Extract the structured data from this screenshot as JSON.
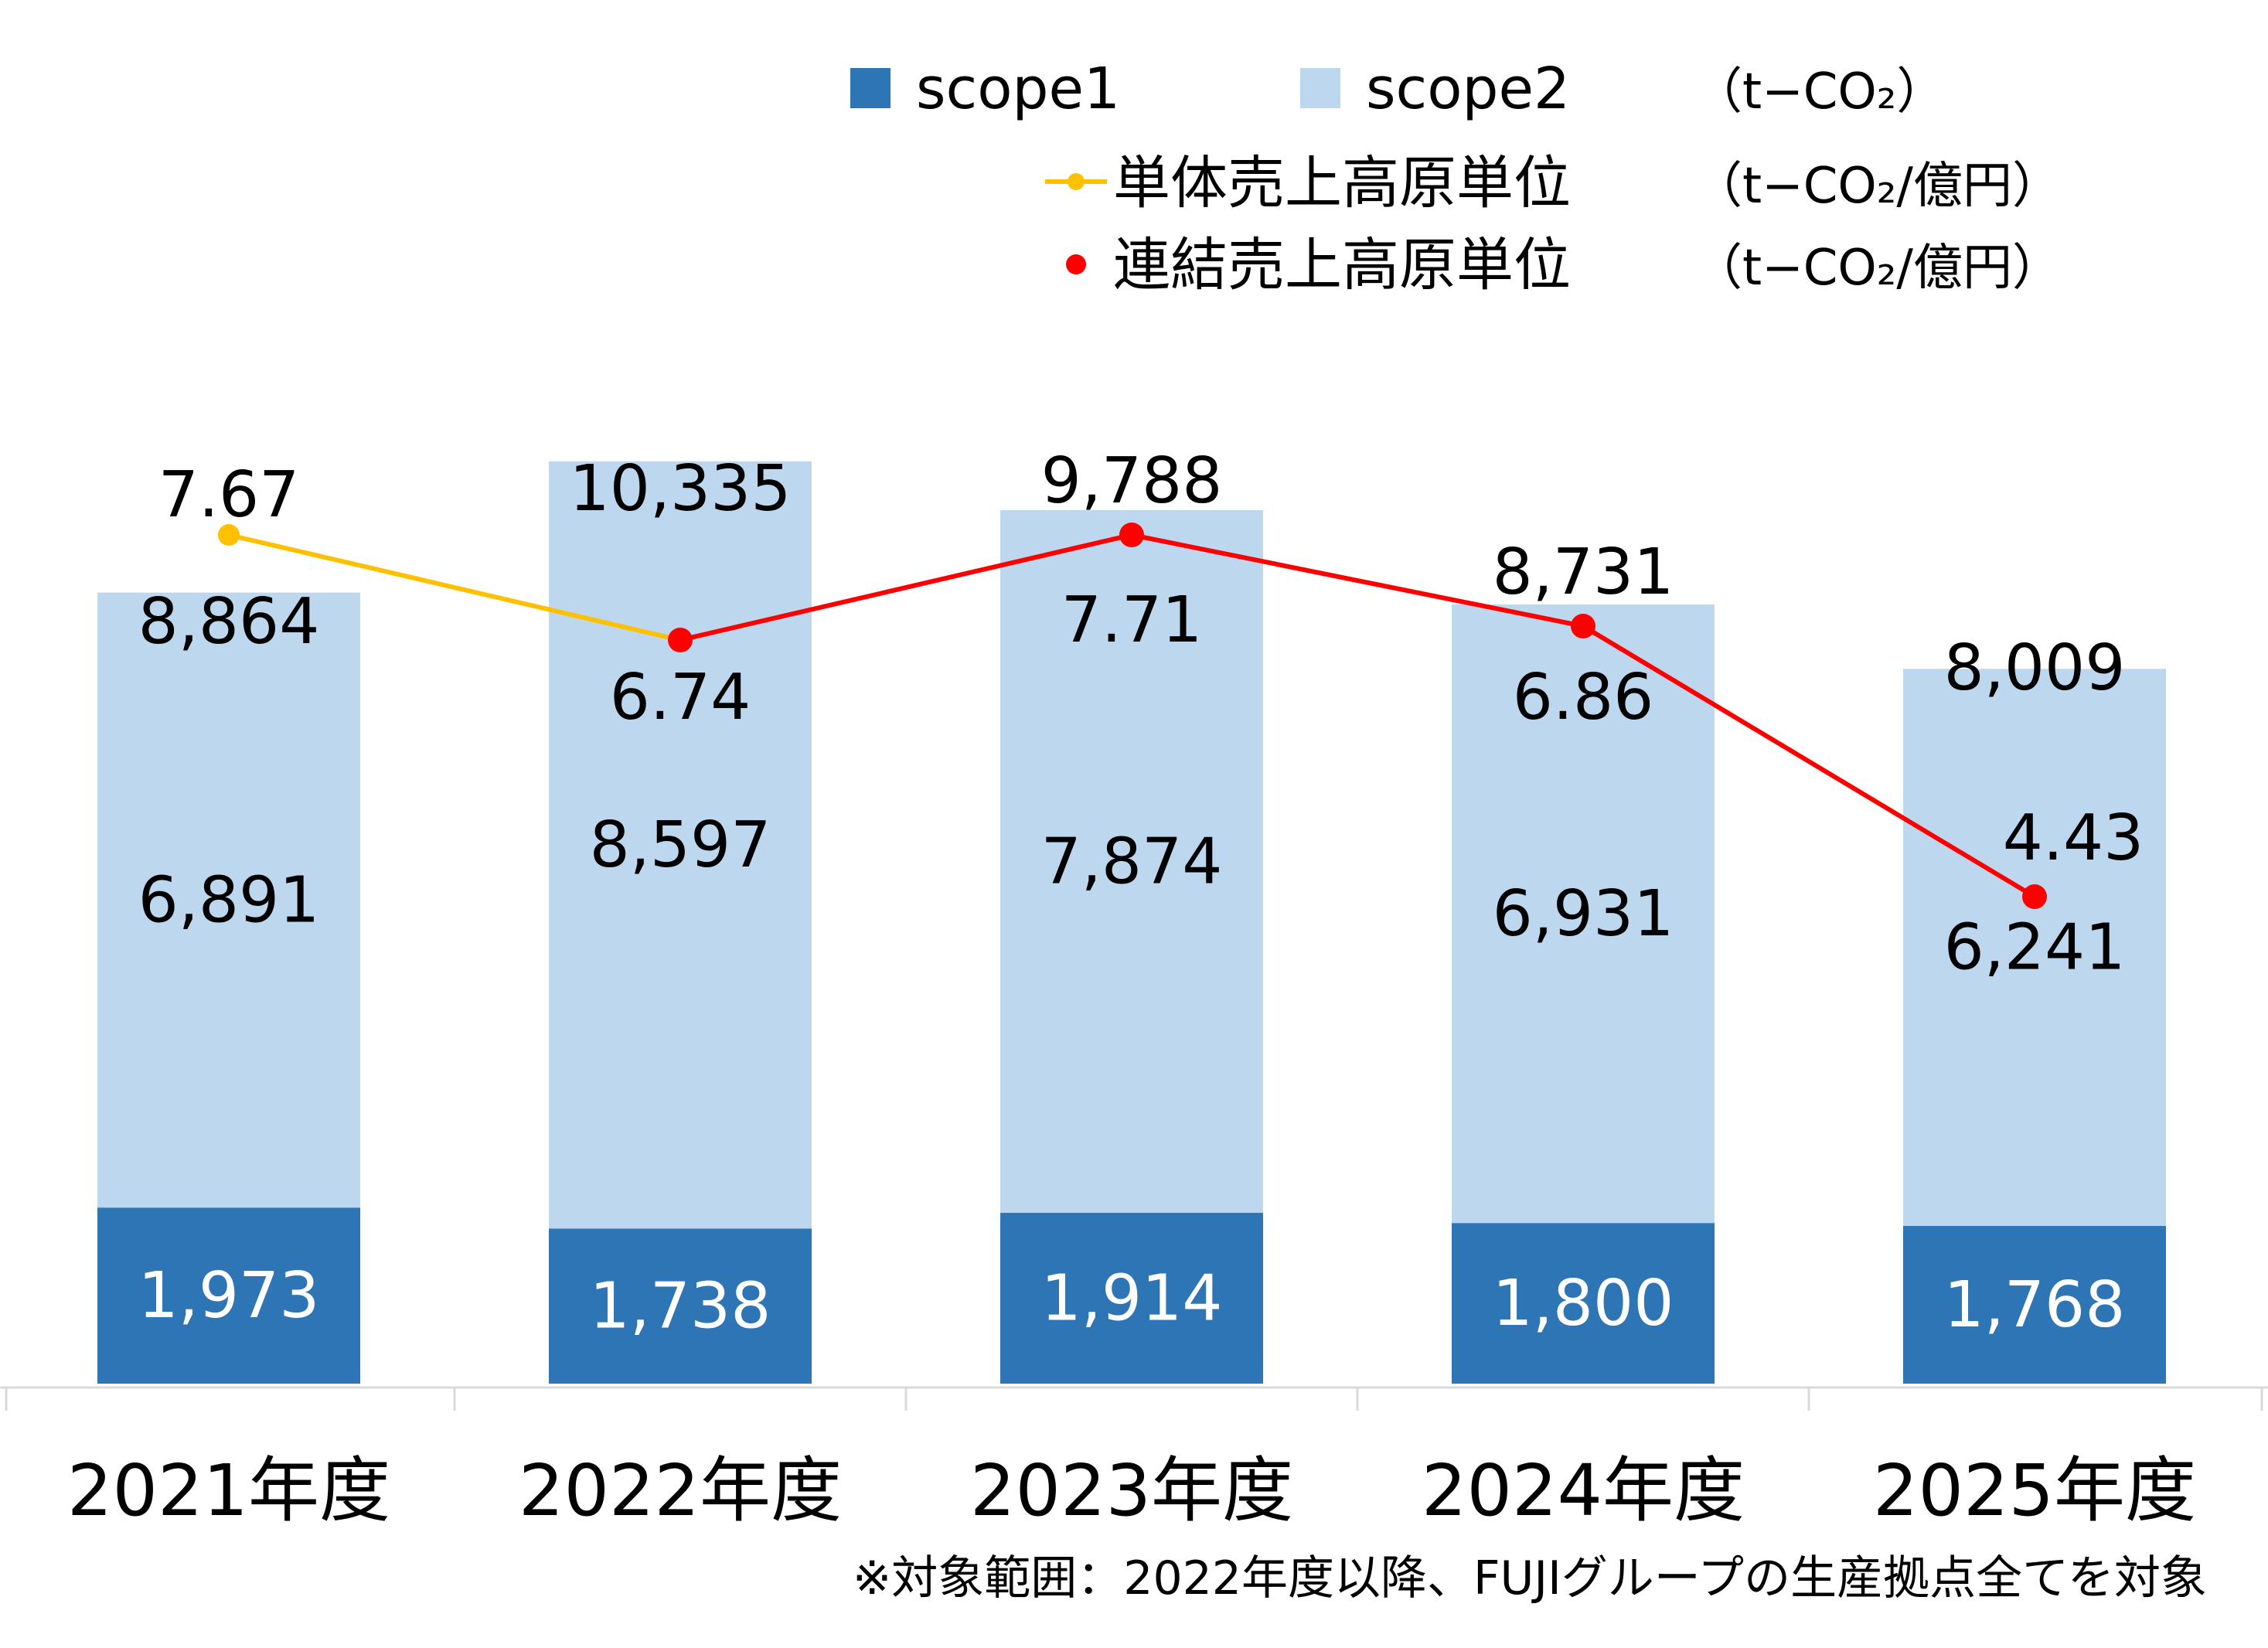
{
  "chart_data": {
    "type": "bar",
    "stacked": true,
    "categories": [
      "2021年度",
      "2022年度",
      "2023年度",
      "2024年度",
      "2025年度"
    ],
    "series": [
      {
        "name": "scope1",
        "values": [
          1973,
          1738,
          1914,
          1800,
          1768
        ],
        "color": "#2E75B6",
        "value_labels": [
          "1,973",
          "1,738",
          "1,914",
          "1,800",
          "1,768"
        ]
      },
      {
        "name": "scope2",
        "values": [
          6891,
          8597,
          7874,
          6931,
          6241
        ],
        "color": "#BDD7EE",
        "value_labels": [
          "6,891",
          "8,597",
          "7,874",
          "6,931",
          "6,241"
        ]
      }
    ],
    "totals": [
      8864,
      10335,
      9788,
      8731,
      8009
    ],
    "total_labels": [
      "8,864",
      "10,335",
      "9,788",
      "8,731",
      "8,009"
    ],
    "intensity_series": [
      {
        "name": "単体売上高原単位",
        "values": [
          7.67,
          6.74,
          null,
          null,
          null
        ],
        "labels": [
          "7.67",
          "",
          "",
          "",
          ""
        ],
        "color": "#FFC000"
      },
      {
        "name": "連結売上高原単位",
        "values": [
          null,
          6.74,
          7.71,
          6.86,
          4.43
        ],
        "labels": [
          "",
          "6.74",
          "7.71",
          "6.86",
          "4.43"
        ],
        "color": "#FF0000"
      }
    ],
    "units": {
      "bars": "（t−CO₂）",
      "single_intensity": "（t−CO₂/億円）",
      "consolidated_intensity": "（t−CO₂/億円）"
    },
    "ylim_bars": [
      0,
      11000
    ],
    "grid": false,
    "legend_position": "top-right",
    "footnote": "※対象範囲：2022年度以降、FUJIグループの生産拠点全てを対象"
  }
}
